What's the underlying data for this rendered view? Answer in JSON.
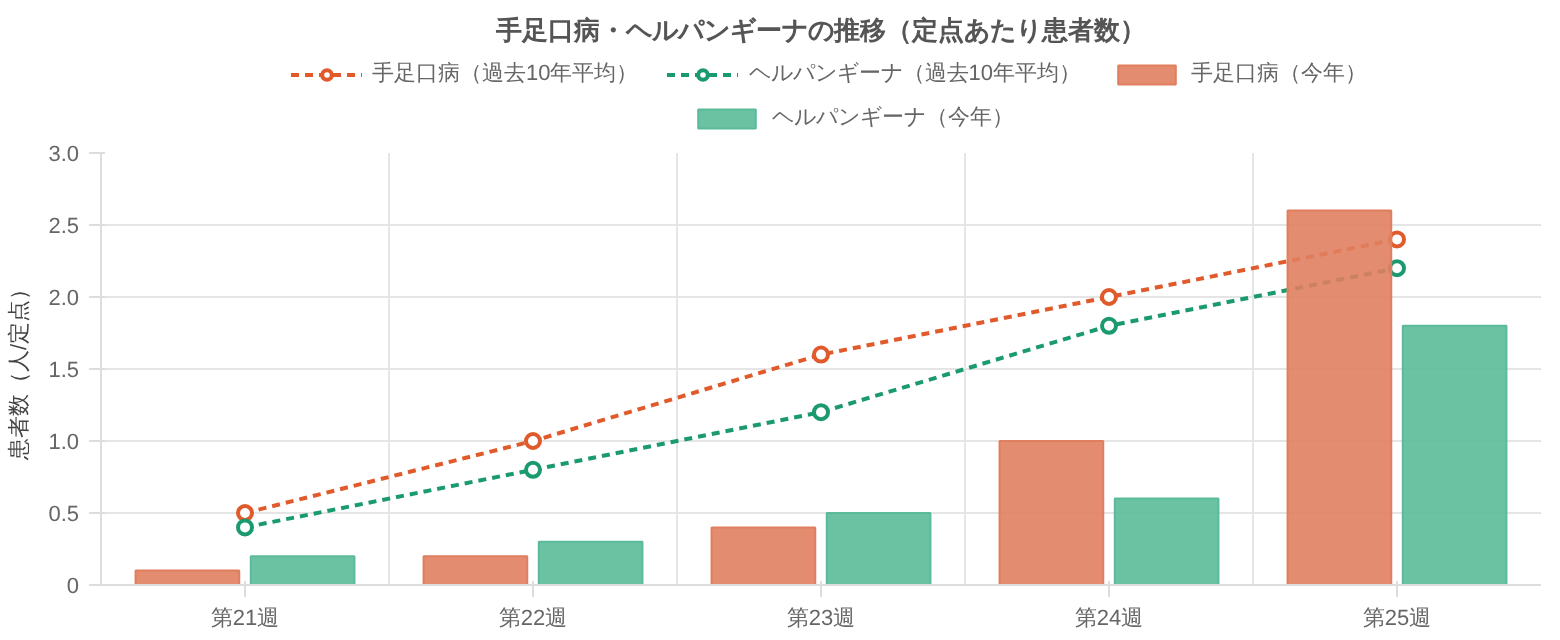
{
  "chart_data": {
    "type": "bar",
    "title": "手足口病・ヘルパンギーナの推移（定点あたり患者数）",
    "ylabel": "患者数（人/定点）",
    "categories": [
      "第21週",
      "第22週",
      "第23週",
      "第24週",
      "第25週"
    ],
    "series": [
      {
        "name": "手足口病（過去10年平均）",
        "type": "line",
        "color": "#e05a2b",
        "values": [
          0.5,
          1.0,
          1.6,
          2.0,
          2.4
        ]
      },
      {
        "name": "ヘルパンギーナ（過去10年平均）",
        "type": "line",
        "color": "#1a9a6e",
        "values": [
          0.4,
          0.8,
          1.2,
          1.8,
          2.2
        ]
      },
      {
        "name": "手足口病（今年）",
        "type": "bar",
        "color": "#e07f5f",
        "values": [
          0.1,
          0.2,
          0.4,
          1.0,
          2.6
        ]
      },
      {
        "name": "ヘルパンギーナ（今年）",
        "type": "bar",
        "color": "#5bbb98",
        "values": [
          0.2,
          0.3,
          0.5,
          0.6,
          1.8
        ]
      }
    ],
    "ylim": [
      0,
      3
    ],
    "yticks": [
      0,
      {
        "value": 0.5,
        "label": "0.5"
      },
      {
        "value": 1,
        "label": "1.0"
      },
      {
        "value": 1.5,
        "label": "1.5"
      },
      {
        "value": 2,
        "label": "2.0"
      },
      {
        "value": 2.5,
        "label": "2.5"
      },
      {
        "value": 3,
        "label": "3.0"
      }
    ],
    "grid": true,
    "legend": "top",
    "marker": "circle",
    "line_style": "dashed"
  }
}
